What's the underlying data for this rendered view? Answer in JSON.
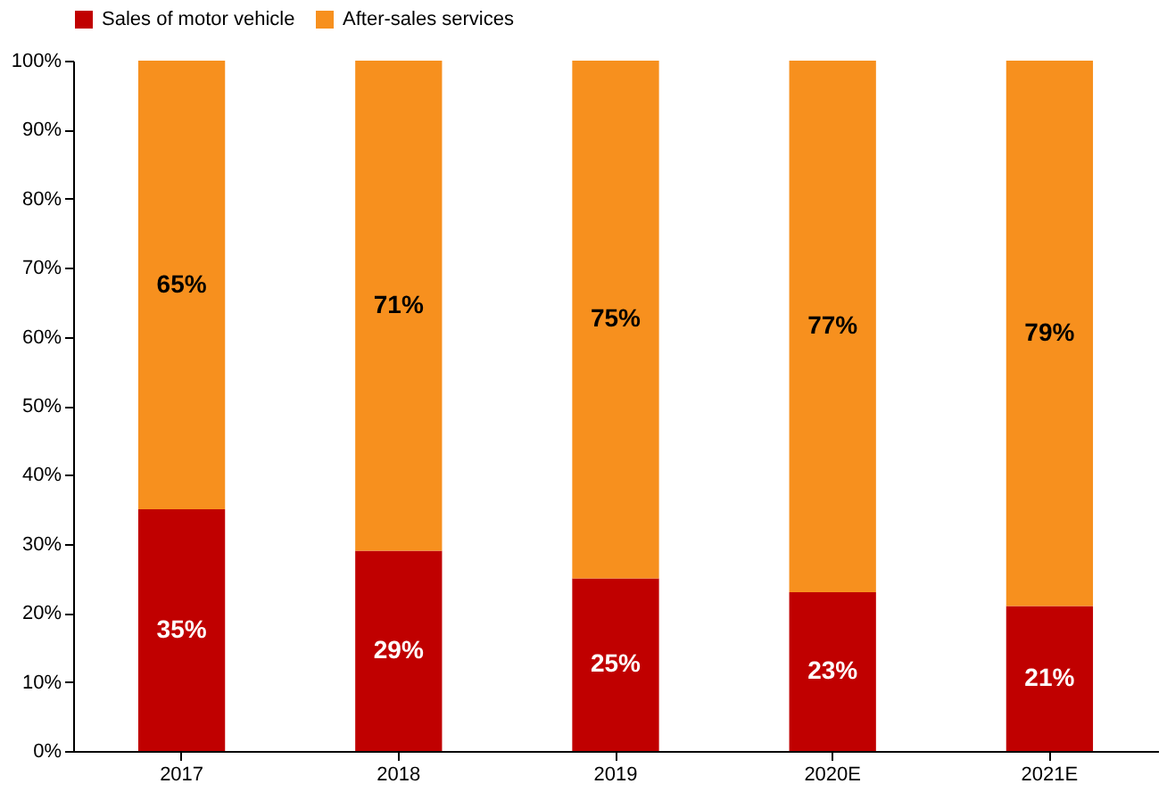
{
  "chart_data": {
    "type": "bar",
    "stacked": true,
    "legend": "top",
    "grid": false,
    "categories": [
      "2017",
      "2018",
      "2019",
      "2020E",
      "2021E"
    ],
    "series": [
      {
        "name": "Sales of motor vehicle",
        "color": "#c00000",
        "values": [
          35,
          29,
          25,
          23,
          21
        ],
        "value_labels": [
          "35%",
          "29%",
          "25%",
          "23%",
          "21%"
        ]
      },
      {
        "name": "After-sales services",
        "color": "#f7901e",
        "values": [
          65,
          71,
          75,
          77,
          79
        ],
        "value_labels": [
          "65%",
          "71%",
          "75%",
          "77%",
          "79%"
        ]
      }
    ],
    "ylim": [
      0,
      100
    ],
    "yticks": [
      {
        "value": 0,
        "label": "0%"
      },
      {
        "value": 10,
        "label": "10%"
      },
      {
        "value": 20,
        "label": "20%"
      },
      {
        "value": 30,
        "label": "30%"
      },
      {
        "value": 40,
        "label": "40%"
      },
      {
        "value": 50,
        "label": "50%"
      },
      {
        "value": 60,
        "label": "60%"
      },
      {
        "value": 70,
        "label": "70%"
      },
      {
        "value": 80,
        "label": "80%"
      },
      {
        "value": 90,
        "label": "90%"
      },
      {
        "value": 100,
        "label": "100%"
      }
    ]
  }
}
